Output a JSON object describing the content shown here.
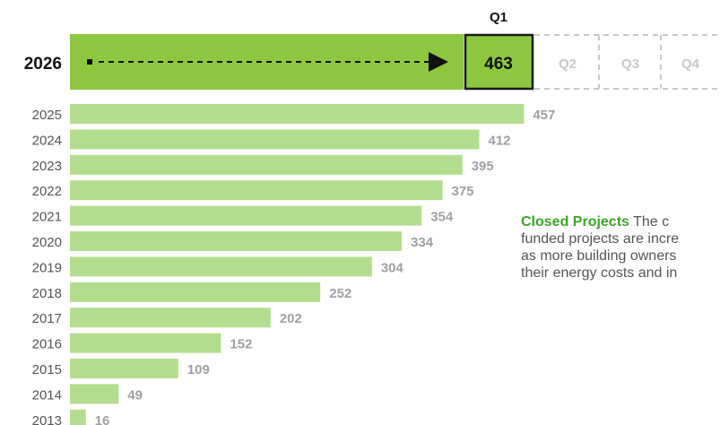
{
  "chart_data": {
    "type": "bar",
    "orientation": "horizontal",
    "categories": [
      "2025",
      "2024",
      "2023",
      "2022",
      "2021",
      "2020",
      "2019",
      "2018",
      "2017",
      "2016",
      "2015",
      "2014",
      "2013"
    ],
    "values": [
      457,
      412,
      395,
      375,
      354,
      334,
      304,
      252,
      202,
      152,
      109,
      49,
      16
    ],
    "title": "",
    "xlabel": "",
    "ylabel": "",
    "colors": {
      "bar": "#b3dd8e",
      "highlight_bar": "#8dc73f",
      "value_label": "#a0a0a0",
      "note_title": "#3aa526",
      "empty_quarter": "#c8c8c8"
    },
    "current": {
      "year": "2026",
      "quarter_label": "Q1",
      "value": 463,
      "value_label": "463",
      "upcoming_quarters": [
        "Q2",
        "Q3",
        "Q4"
      ]
    }
  },
  "annotation": {
    "title": "Closed Projects",
    "lines": [
      "The c",
      "funded projects are incre",
      "as more building owners",
      "their energy costs and in"
    ]
  }
}
